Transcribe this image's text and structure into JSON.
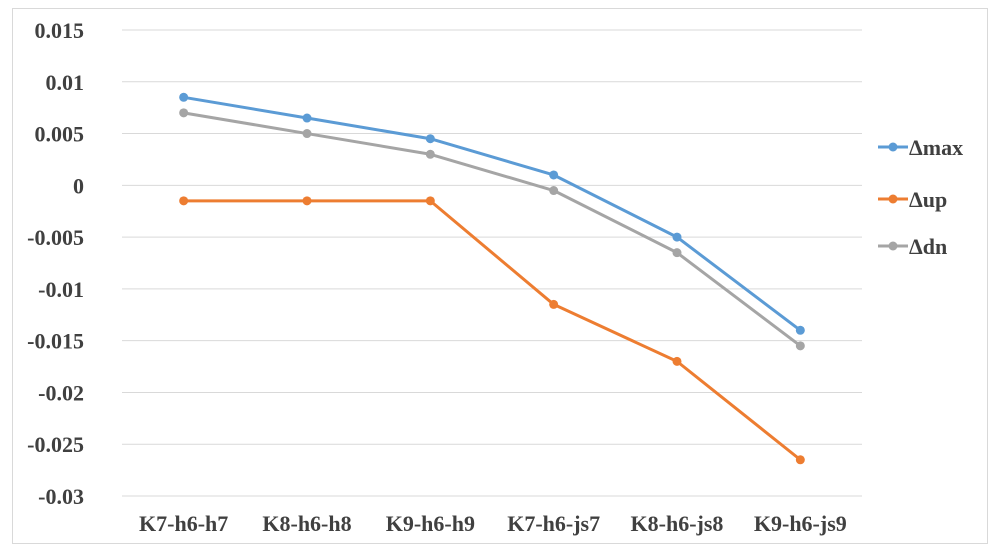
{
  "chart_data": {
    "type": "line",
    "title": "",
    "xlabel": "",
    "ylabel": "",
    "categories": [
      "K7-h6-h7",
      "K8-h6-h8",
      "K9-h6-h9",
      "K7-h6-js7",
      "K8-h6-js8",
      "K9-h6-js9"
    ],
    "yticks": [
      "0.015",
      "0.01",
      "0.005",
      "0",
      "-0.005",
      "-0.01",
      "-0.015",
      "-0.02",
      "-0.025",
      "-0.03"
    ],
    "ylim": [
      -0.03,
      0.015
    ],
    "grid": true,
    "legend": "right",
    "series": [
      {
        "name": "Δmax",
        "color": "#5b9bd5",
        "values": [
          0.0085,
          0.0065,
          0.0045,
          0.001,
          -0.005,
          -0.014
        ]
      },
      {
        "name": "Δup",
        "color": "#ed7d31",
        "values": [
          -0.0015,
          -0.0015,
          -0.0015,
          -0.0115,
          -0.017,
          -0.0265
        ]
      },
      {
        "name": "Δdn",
        "color": "#a5a5a5",
        "values": [
          0.007,
          0.005,
          0.003,
          -0.0005,
          -0.0065,
          -0.0155
        ]
      }
    ]
  }
}
